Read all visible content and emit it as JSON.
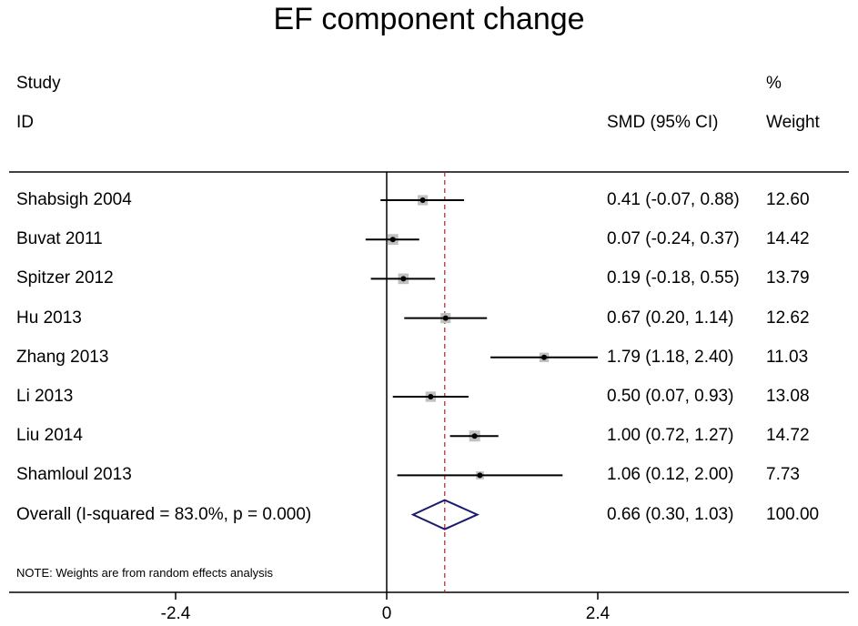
{
  "chart_data": {
    "type": "forest",
    "title": "EF component change",
    "headers": {
      "study_line1": "Study",
      "study_line2": "ID",
      "effect": "SMD (95% CI)",
      "weight_line1": "%",
      "weight_line2": "Weight"
    },
    "studies": [
      {
        "label": "Shabsigh 2004",
        "smd": 0.41,
        "lo": -0.07,
        "hi": 0.88,
        "ci_text": "0.41 (-0.07, 0.88)",
        "weight": 12.6,
        "weight_text": "12.60"
      },
      {
        "label": "Buvat 2011",
        "smd": 0.07,
        "lo": -0.24,
        "hi": 0.37,
        "ci_text": "0.07 (-0.24, 0.37)",
        "weight": 14.42,
        "weight_text": "14.42"
      },
      {
        "label": "Spitzer 2012",
        "smd": 0.19,
        "lo": -0.18,
        "hi": 0.55,
        "ci_text": "0.19 (-0.18, 0.55)",
        "weight": 13.79,
        "weight_text": "13.79"
      },
      {
        "label": "Hu 2013",
        "smd": 0.67,
        "lo": 0.2,
        "hi": 1.14,
        "ci_text": "0.67 (0.20, 1.14)",
        "weight": 12.62,
        "weight_text": "12.62"
      },
      {
        "label": "Zhang 2013",
        "smd": 1.79,
        "lo": 1.18,
        "hi": 2.4,
        "ci_text": "1.79 (1.18, 2.40)",
        "weight": 11.03,
        "weight_text": "11.03"
      },
      {
        "label": "Li 2013",
        "smd": 0.5,
        "lo": 0.07,
        "hi": 0.93,
        "ci_text": "0.50 (0.07, 0.93)",
        "weight": 13.08,
        "weight_text": "13.08"
      },
      {
        "label": "Liu 2014",
        "smd": 1.0,
        "lo": 0.72,
        "hi": 1.27,
        "ci_text": "1.00 (0.72, 1.27)",
        "weight": 14.72,
        "weight_text": "14.72"
      },
      {
        "label": "Shamloul 2013",
        "smd": 1.06,
        "lo": 0.12,
        "hi": 2.0,
        "ci_text": "1.06 (0.12, 2.00)",
        "weight": 7.73,
        "weight_text": "7.73"
      }
    ],
    "overall": {
      "label": "Overall  (I-squared = 83.0%, p = 0.000)",
      "smd": 0.66,
      "lo": 0.3,
      "hi": 1.03,
      "ci_text": "0.66 (0.30, 1.03)",
      "weight_text": "100.00"
    },
    "note": "NOTE: Weights are from random effects analysis",
    "x_ticks": [
      -2.4,
      0,
      2.4
    ],
    "x_tick_labels": [
      "-2.4",
      "0",
      "2.4"
    ],
    "xlim": [
      -4.4,
      5.5
    ],
    "colors": {
      "marker_box": "#c0c0c0",
      "overall_diamond": "#1a1a6e",
      "overall_line": "#b02020"
    }
  }
}
